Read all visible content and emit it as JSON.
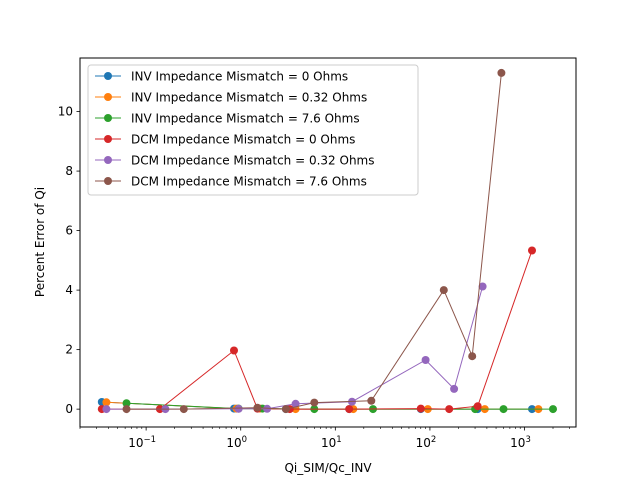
{
  "chart_data": {
    "type": "line",
    "xlabel": "Qi_SIM/Qc_INV",
    "ylabel": "Percent Error of Qi",
    "xscale": "log",
    "xlim": [
      0.02,
      3500
    ],
    "ylim": [
      -0.6,
      11.8
    ],
    "x_ticks": [
      {
        "value": 0.1,
        "base": "10",
        "exp": "−1"
      },
      {
        "value": 1,
        "base": "10",
        "exp": "0"
      },
      {
        "value": 10,
        "base": "10",
        "exp": "1"
      },
      {
        "value": 100,
        "base": "10",
        "exp": "2"
      },
      {
        "value": 1000,
        "base": "10",
        "exp": "3"
      }
    ],
    "y_ticks": [
      {
        "value": 0,
        "label": "0"
      },
      {
        "value": 2,
        "label": "2"
      },
      {
        "value": 4,
        "label": "4"
      },
      {
        "value": 6,
        "label": "6"
      },
      {
        "value": 8,
        "label": "8"
      },
      {
        "value": 10,
        "label": "10"
      }
    ],
    "legend_position": "upper-left",
    "grid": false,
    "series": [
      {
        "name": "INV Impedance Mismatch = 0 Ohms",
        "color": "#1f77b4",
        "points": [
          [
            0.034,
            0.24
          ],
          [
            0.85,
            0.02
          ],
          [
            1.5,
            0.02
          ],
          [
            3.0,
            0.0
          ],
          [
            14,
            0.0
          ],
          [
            80,
            0.0
          ],
          [
            320,
            0.0
          ],
          [
            1200,
            0.0
          ]
        ]
      },
      {
        "name": "INV Impedance Mismatch = 0.32 Ohms",
        "color": "#ff7f0e",
        "points": [
          [
            0.038,
            0.23
          ],
          [
            0.9,
            0.02
          ],
          [
            1.6,
            0.02
          ],
          [
            3.8,
            0.0
          ],
          [
            15.5,
            0.0
          ],
          [
            95,
            0.0
          ],
          [
            380,
            0.0
          ],
          [
            1400,
            0.0
          ]
        ]
      },
      {
        "name": "INV Impedance Mismatch = 7.6 Ohms",
        "color": "#2ca02c",
        "points": [
          [
            0.062,
            0.2
          ],
          [
            0.95,
            0.02
          ],
          [
            1.7,
            0.02
          ],
          [
            6.0,
            0.0
          ],
          [
            25,
            0.0
          ],
          [
            300,
            0.0
          ],
          [
            600,
            0.0
          ],
          [
            2000,
            0.0
          ]
        ]
      },
      {
        "name": "DCM Impedance Mismatch = 0 Ohms",
        "color": "#d62728",
        "points": [
          [
            0.034,
            0.0
          ],
          [
            0.14,
            0.0
          ],
          [
            0.85,
            1.97
          ],
          [
            1.5,
            0.02
          ],
          [
            3.3,
            0.0
          ],
          [
            14,
            0.0
          ],
          [
            80,
            0.02
          ],
          [
            160,
            0.0
          ],
          [
            320,
            0.1
          ],
          [
            1200,
            5.33
          ]
        ]
      },
      {
        "name": "DCM Impedance Mismatch = 0.32 Ohms",
        "color": "#9467bd",
        "points": [
          [
            0.038,
            0.0
          ],
          [
            0.16,
            0.0
          ],
          [
            0.95,
            0.01
          ],
          [
            1.9,
            0.01
          ],
          [
            3.8,
            0.18
          ],
          [
            15,
            0.25
          ],
          [
            90,
            1.65
          ],
          [
            180,
            0.68
          ],
          [
            360,
            4.12
          ]
        ]
      },
      {
        "name": "DCM Impedance Mismatch = 7.6 Ohms",
        "color": "#8c564b",
        "points": [
          [
            0.062,
            0.0
          ],
          [
            0.25,
            0.0
          ],
          [
            1.5,
            0.05
          ],
          [
            3.0,
            0.0
          ],
          [
            6.0,
            0.22
          ],
          [
            24,
            0.28
          ],
          [
            140,
            4.0
          ],
          [
            280,
            1.78
          ],
          [
            570,
            11.3
          ]
        ]
      }
    ]
  }
}
